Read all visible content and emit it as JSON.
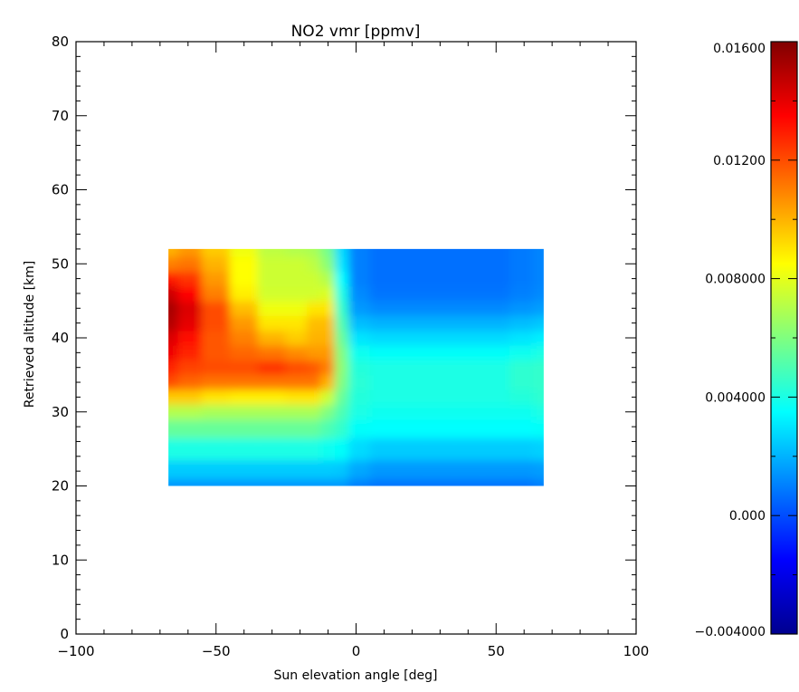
{
  "chart_data": {
    "type": "heatmap",
    "title": "NO2 vmr [ppmv]",
    "xlabel": "Sun elevation angle [deg]",
    "ylabel": "Retrieved altitude [km]",
    "xlim": [
      -100,
      100
    ],
    "ylim": [
      0,
      80
    ],
    "x_ticks": [
      "-100",
      "-50",
      "0",
      "50",
      "100"
    ],
    "y_ticks": [
      "0",
      "10",
      "20",
      "30",
      "40",
      "50",
      "60",
      "70",
      "80"
    ],
    "data_extent": {
      "x": [
        -67,
        67
      ],
      "y": [
        20,
        52
      ]
    },
    "colorbar": {
      "min": -0.004,
      "max": 0.016,
      "tick_values": [
        -0.004,
        0.0,
        0.004,
        0.008,
        0.012,
        0.016
      ],
      "tick_labels": [
        "-0.004000",
        "0.000",
        "0.004000",
        "0.008000",
        "0.01200",
        "0.01600"
      ],
      "colormap": "jet"
    },
    "x": [
      -67,
      -60,
      -50,
      -40,
      -30,
      -20,
      -15,
      -10,
      -5,
      0,
      10,
      20,
      30,
      40,
      50,
      60,
      67
    ],
    "y": [
      20,
      22,
      25,
      28,
      30,
      32,
      34,
      36,
      38,
      40,
      42,
      44,
      46,
      48,
      50,
      52
    ],
    "z": [
      [
        0.0015,
        0.0015,
        0.0015,
        0.0015,
        0.0015,
        0.0015,
        0.0015,
        0.0015,
        0.0015,
        0.001,
        0.0008,
        0.0008,
        0.0008,
        0.0008,
        0.0008,
        0.0008,
        0.001
      ],
      [
        0.0025,
        0.0025,
        0.0025,
        0.0025,
        0.0025,
        0.0025,
        0.0025,
        0.0025,
        0.0024,
        0.0018,
        0.0015,
        0.0015,
        0.0015,
        0.0015,
        0.0015,
        0.0015,
        0.0016
      ],
      [
        0.004,
        0.004,
        0.004,
        0.004,
        0.004,
        0.004,
        0.004,
        0.0038,
        0.0036,
        0.0028,
        0.0025,
        0.0025,
        0.0025,
        0.0025,
        0.0025,
        0.0025,
        0.0026
      ],
      [
        0.0055,
        0.0055,
        0.0055,
        0.0055,
        0.0055,
        0.0055,
        0.0055,
        0.005,
        0.0045,
        0.0036,
        0.0035,
        0.0035,
        0.0035,
        0.0035,
        0.0035,
        0.0035,
        0.0036
      ],
      [
        0.007,
        0.007,
        0.0068,
        0.0068,
        0.0068,
        0.0068,
        0.0068,
        0.006,
        0.005,
        0.004,
        0.0038,
        0.0038,
        0.0038,
        0.0038,
        0.0038,
        0.0038,
        0.004
      ],
      [
        0.0095,
        0.0095,
        0.009,
        0.0088,
        0.0088,
        0.009,
        0.009,
        0.0075,
        0.0055,
        0.0042,
        0.004,
        0.004,
        0.004,
        0.004,
        0.004,
        0.0042,
        0.0044
      ],
      [
        0.012,
        0.0115,
        0.0112,
        0.0112,
        0.0112,
        0.0112,
        0.0112,
        0.01,
        0.006,
        0.0043,
        0.004,
        0.004,
        0.004,
        0.004,
        0.004,
        0.0044,
        0.0045
      ],
      [
        0.0128,
        0.0122,
        0.012,
        0.012,
        0.0125,
        0.012,
        0.0118,
        0.011,
        0.0062,
        0.0042,
        0.004,
        0.004,
        0.004,
        0.004,
        0.004,
        0.0044,
        0.0045
      ],
      [
        0.0138,
        0.0128,
        0.0118,
        0.0115,
        0.0112,
        0.0108,
        0.0105,
        0.0105,
        0.006,
        0.0038,
        0.0036,
        0.0036,
        0.0036,
        0.0036,
        0.0036,
        0.0038,
        0.004
      ],
      [
        0.0142,
        0.0132,
        0.0118,
        0.011,
        0.01,
        0.0095,
        0.01,
        0.01,
        0.0055,
        0.003,
        0.0028,
        0.0028,
        0.0028,
        0.0028,
        0.0028,
        0.003,
        0.0032
      ],
      [
        0.015,
        0.014,
        0.012,
        0.0105,
        0.009,
        0.009,
        0.0098,
        0.0098,
        0.005,
        0.0022,
        0.002,
        0.002,
        0.002,
        0.002,
        0.002,
        0.0022,
        0.0024
      ],
      [
        0.0152,
        0.0142,
        0.012,
        0.0098,
        0.0082,
        0.0082,
        0.009,
        0.009,
        0.0045,
        0.0015,
        0.0012,
        0.0012,
        0.0012,
        0.0012,
        0.0012,
        0.0014,
        0.0016
      ],
      [
        0.0145,
        0.0135,
        0.011,
        0.0088,
        0.0076,
        0.0076,
        0.0076,
        0.0078,
        0.004,
        0.0012,
        0.0008,
        0.0008,
        0.0008,
        0.0008,
        0.0008,
        0.001,
        0.0012
      ],
      [
        0.013,
        0.0125,
        0.0105,
        0.0085,
        0.0075,
        0.0075,
        0.0075,
        0.007,
        0.0035,
        0.001,
        0.0007,
        0.0007,
        0.0007,
        0.0007,
        0.0007,
        0.0009,
        0.0011
      ],
      [
        0.011,
        0.0112,
        0.01,
        0.0085,
        0.0075,
        0.0075,
        0.0072,
        0.0062,
        0.003,
        0.001,
        0.0007,
        0.0007,
        0.0007,
        0.0007,
        0.0007,
        0.0009,
        0.0011
      ],
      [
        0.01,
        0.0105,
        0.0095,
        0.0082,
        0.0072,
        0.007,
        0.0068,
        0.0058,
        0.0028,
        0.001,
        0.0007,
        0.0007,
        0.0007,
        0.0007,
        0.0007,
        0.0009,
        0.0011
      ]
    ]
  }
}
